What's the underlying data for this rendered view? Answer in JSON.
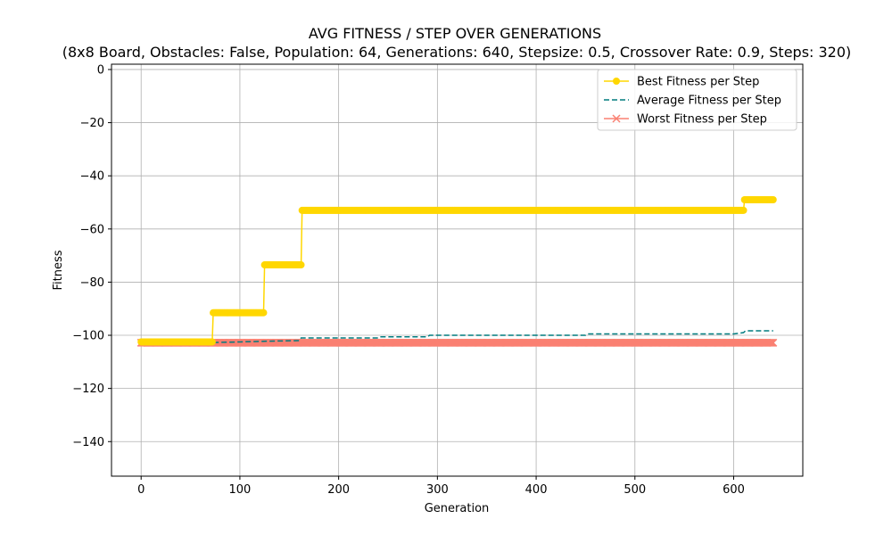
{
  "chart_data": {
    "type": "line",
    "title": "AVG FITNESS / STEP OVER GENERATIONS",
    "subtitle": "(8x8 Board, Obstacles: False, Population: 64, Generations: 640, Stepsize: 0.5, Crossover Rate: 0.9, Steps: 320)",
    "xlabel": "Generation",
    "ylabel": "Fitness",
    "xlim": [
      -30,
      670
    ],
    "ylim": [
      -153,
      2
    ],
    "x_ticks": [
      0,
      100,
      200,
      300,
      400,
      500,
      600
    ],
    "y_ticks": [
      0,
      -20,
      -40,
      -60,
      -80,
      -100,
      -120,
      -140
    ],
    "grid": true,
    "legend_position": "top-right",
    "series": [
      {
        "name": "Best Fitness per Step",
        "style": "solid",
        "marker": "circle",
        "color": "#FFD700",
        "steps": [
          {
            "from": 0,
            "to": 72,
            "y": -102.5
          },
          {
            "from": 73,
            "to": 124,
            "y": -91.5
          },
          {
            "from": 125,
            "to": 162,
            "y": -73.5
          },
          {
            "from": 163,
            "to": 610,
            "y": -53
          },
          {
            "from": 611,
            "to": 640,
            "y": -49
          }
        ]
      },
      {
        "name": "Average Fitness per Step",
        "style": "dashed",
        "marker": "none",
        "color": "#007B7F",
        "points": [
          [
            0,
            -103
          ],
          [
            20,
            -103
          ],
          [
            60,
            -102.8
          ],
          [
            100,
            -102.5
          ],
          [
            130,
            -102.2
          ],
          [
            160,
            -102
          ],
          [
            162,
            -101
          ],
          [
            240,
            -101
          ],
          [
            242,
            -100.6
          ],
          [
            290,
            -100.6
          ],
          [
            292,
            -100
          ],
          [
            450,
            -100
          ],
          [
            452,
            -99.5
          ],
          [
            600,
            -99.5
          ],
          [
            610,
            -99
          ],
          [
            612,
            -98.3
          ],
          [
            640,
            -98.3
          ]
        ]
      },
      {
        "name": "Worst Fitness per Step",
        "style": "solid",
        "marker": "x",
        "color": "#FA8072",
        "steps": [
          {
            "from": 0,
            "to": 640,
            "y": -102.8
          }
        ]
      }
    ]
  }
}
